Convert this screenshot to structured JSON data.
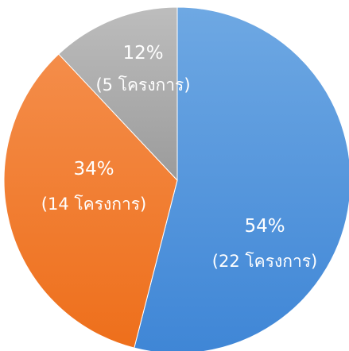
{
  "chart_data": {
    "type": "pie",
    "title": "",
    "start_angle_deg": 0,
    "direction": "clockwise",
    "slices": [
      {
        "label": "54%",
        "value": 54,
        "detail": "(22 โครงการ)",
        "color": "#4a90d9"
      },
      {
        "label": "34%",
        "value": 34,
        "detail": "(14 โครงการ)",
        "color": "#f07f30"
      },
      {
        "label": "12%",
        "value": 12,
        "detail": "(5 โครงการ)",
        "color": "#a6a6a6"
      }
    ]
  }
}
